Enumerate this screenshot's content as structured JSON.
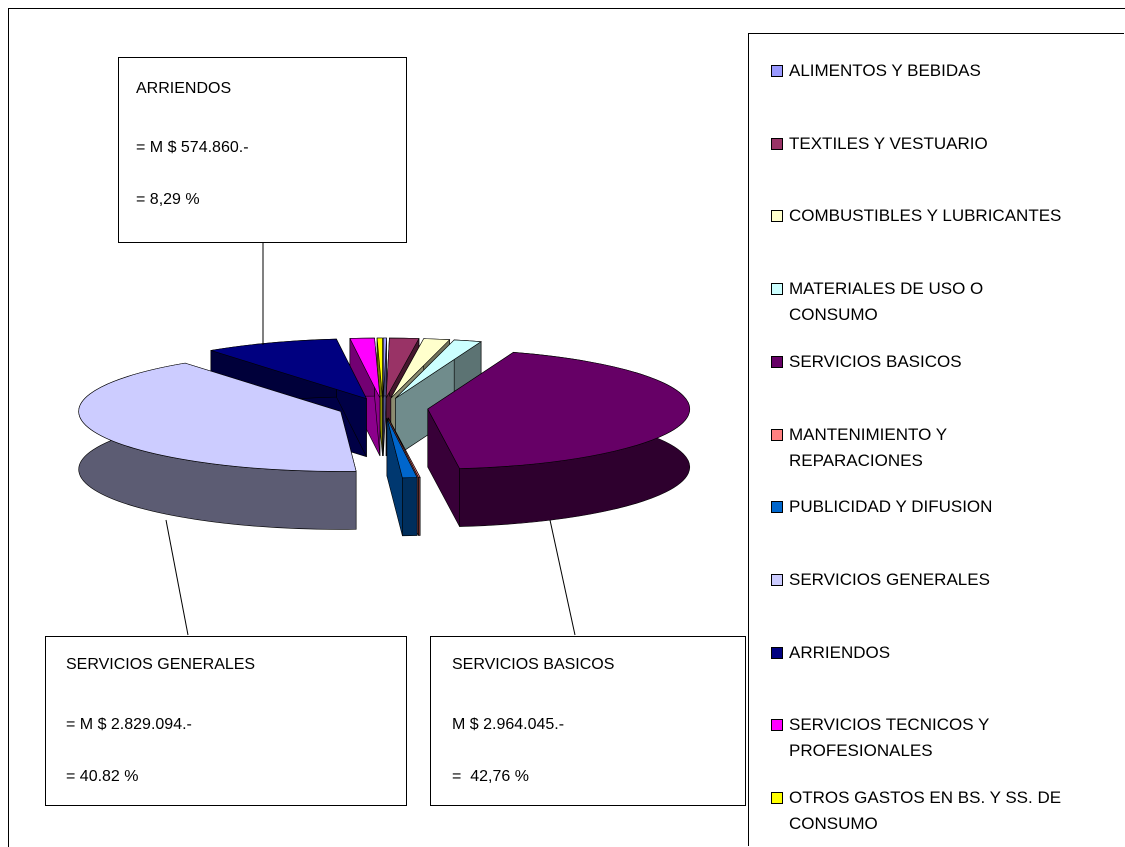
{
  "chart_data": {
    "type": "pie",
    "categories": [
      "ALIMENTOS Y BEBIDAS",
      "TEXTILES Y VESTUARIO",
      "COMBUSTIBLES Y LUBRICANTES",
      "MATERIALES DE USO O CONSUMO",
      "SERVICIOS BASICOS",
      "MANTENIMIENTO Y REPARACIONES",
      "PUBLICIDAD Y DIFUSION",
      "SERVICIOS GENERALES",
      "ARRIENDOS",
      "SERVICIOS TECNICOS Y PROFESIONALES",
      "OTROS GASTOS EN BS. Y SS. DE CONSUMO"
    ],
    "values": [
      0.2,
      1.8,
      1.6,
      1.7,
      42.76,
      0.1,
      0.9,
      40.82,
      8.29,
      1.5,
      0.33
    ],
    "colors": [
      "#9999ff",
      "#993366",
      "#ffffcc",
      "#ccffff",
      "#660066",
      "#ff8080",
      "#0066cc",
      "#ccccff",
      "#000080",
      "#ff00ff",
      "#ffff00"
    ],
    "legend": "right",
    "annotations": [
      {
        "title": "ARRIENDOS",
        "lines": [
          "= M $ 574.860.-",
          "= 8,29 %"
        ]
      },
      {
        "title": "SERVICIOS GENERALES",
        "lines": [
          "= M $ 2.829.094.-",
          "= 40.82 %"
        ]
      },
      {
        "title": "SERVICIOS BASICOS",
        "lines": [
          "M $ 2.964.045.-",
          "=  42,76 %"
        ]
      }
    ]
  }
}
